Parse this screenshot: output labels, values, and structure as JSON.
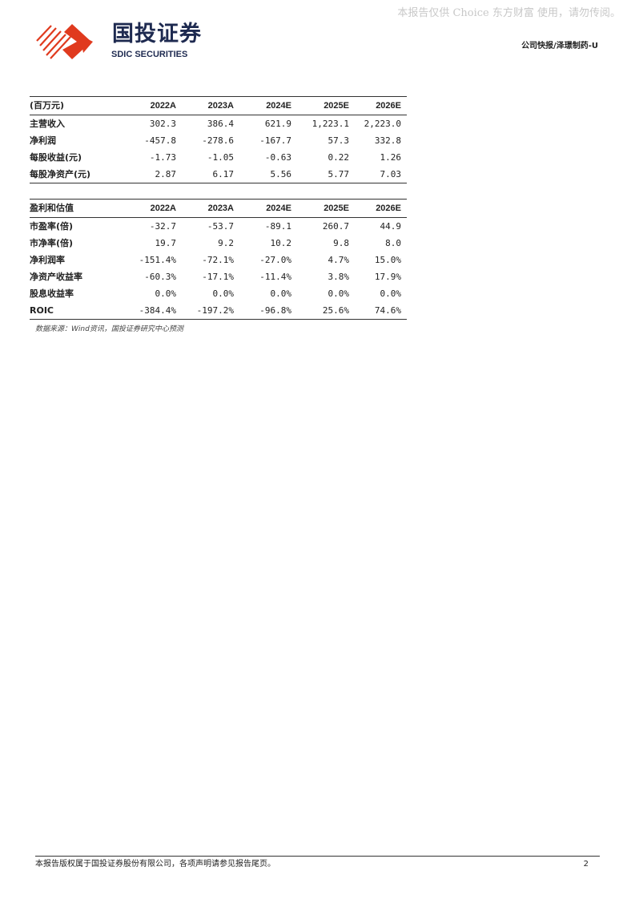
{
  "watermark": "本报告仅供 Choice 东方财富 使用，请勿传阅。",
  "logo": {
    "cn": "国投证券",
    "en": "SDIC SECURITIES",
    "color": "#e03a1e"
  },
  "header_right": "公司快报/泽璟制药-U",
  "table1": {
    "header": [
      "(百万元)",
      "2022A",
      "2023A",
      "2024E",
      "2025E",
      "2026E"
    ],
    "rows": [
      [
        "主营收入",
        "302.3",
        "386.4",
        "621.9",
        "1,223.1",
        "2,223.0"
      ],
      [
        "净利润",
        "-457.8",
        "-278.6",
        "-167.7",
        "57.3",
        "332.8"
      ],
      [
        "每股收益(元)",
        "-1.73",
        "-1.05",
        "-0.63",
        "0.22",
        "1.26"
      ],
      [
        "每股净资产(元)",
        "2.87",
        "6.17",
        "5.56",
        "5.77",
        "7.03"
      ]
    ]
  },
  "table2": {
    "header": [
      "盈利和估值",
      "2022A",
      "2023A",
      "2024E",
      "2025E",
      "2026E"
    ],
    "rows": [
      [
        "市盈率(倍)",
        "-32.7",
        "-53.7",
        "-89.1",
        "260.7",
        "44.9"
      ],
      [
        "市净率(倍)",
        "19.7",
        "9.2",
        "10.2",
        "9.8",
        "8.0"
      ],
      [
        "净利润率",
        "-151.4%",
        "-72.1%",
        "-27.0%",
        "4.7%",
        "15.0%"
      ],
      [
        "净资产收益率",
        "-60.3%",
        "-17.1%",
        "-11.4%",
        "3.8%",
        "17.9%"
      ],
      [
        "股息收益率",
        "0.0%",
        "0.0%",
        "0.0%",
        "0.0%",
        "0.0%"
      ],
      [
        "ROIC",
        "-384.4%",
        "-197.2%",
        "-96.8%",
        "25.6%",
        "74.6%"
      ]
    ]
  },
  "source": "数据来源：Wind资讯，国投证券研究中心预测",
  "footer": {
    "text": "本报告版权属于国投证券股份有限公司，各项声明请参见报告尾页。",
    "page": "2"
  }
}
